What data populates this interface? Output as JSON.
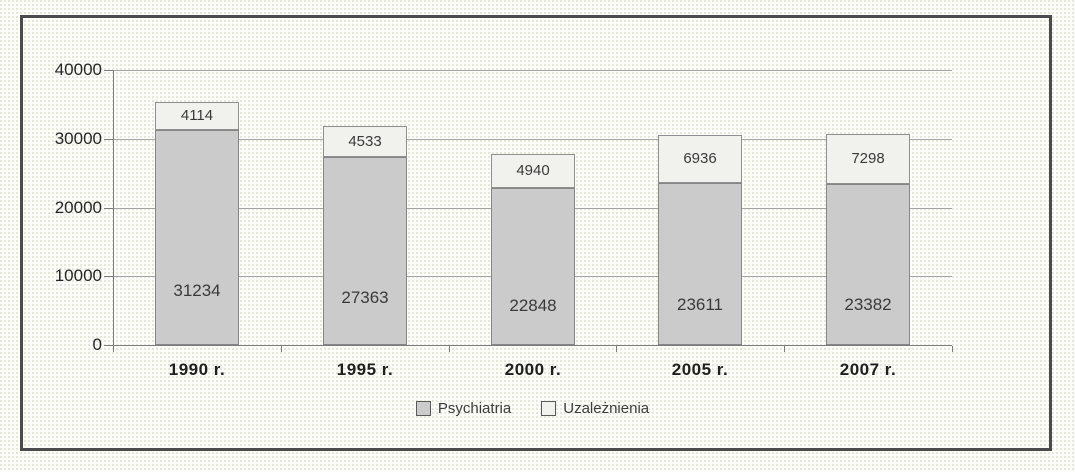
{
  "chart_data": {
    "type": "bar",
    "stacked": true,
    "title": "",
    "categories": [
      "1990 r.",
      "1995 r.",
      "2000 r.",
      "2005 r.",
      "2007 r."
    ],
    "series": [
      {
        "name": "Psychiatria",
        "values": [
          31234,
          27363,
          22848,
          23611,
          23382
        ],
        "color": "#cbcbcb",
        "border": "#868686"
      },
      {
        "name": "Uzależnienia",
        "values": [
          4114,
          4533,
          4940,
          6936,
          7298
        ],
        "color": "#f1f1ee",
        "border": "#8f8f8f"
      }
    ],
    "totals": [
      35348,
      31896,
      27788,
      30547,
      30680
    ],
    "y_ticks": [
      0,
      10000,
      20000,
      30000,
      40000
    ],
    "ylim": [
      0,
      40000
    ],
    "xlabel": "",
    "ylabel": "",
    "grid": true,
    "legend_position": "bottom"
  },
  "colors": {
    "frame_border": "#4b4b4b",
    "gridline": "#a6a6a6",
    "axis": "#7d7d7d",
    "background": "#fdfdf9",
    "label_text": "#3a3a3a"
  }
}
